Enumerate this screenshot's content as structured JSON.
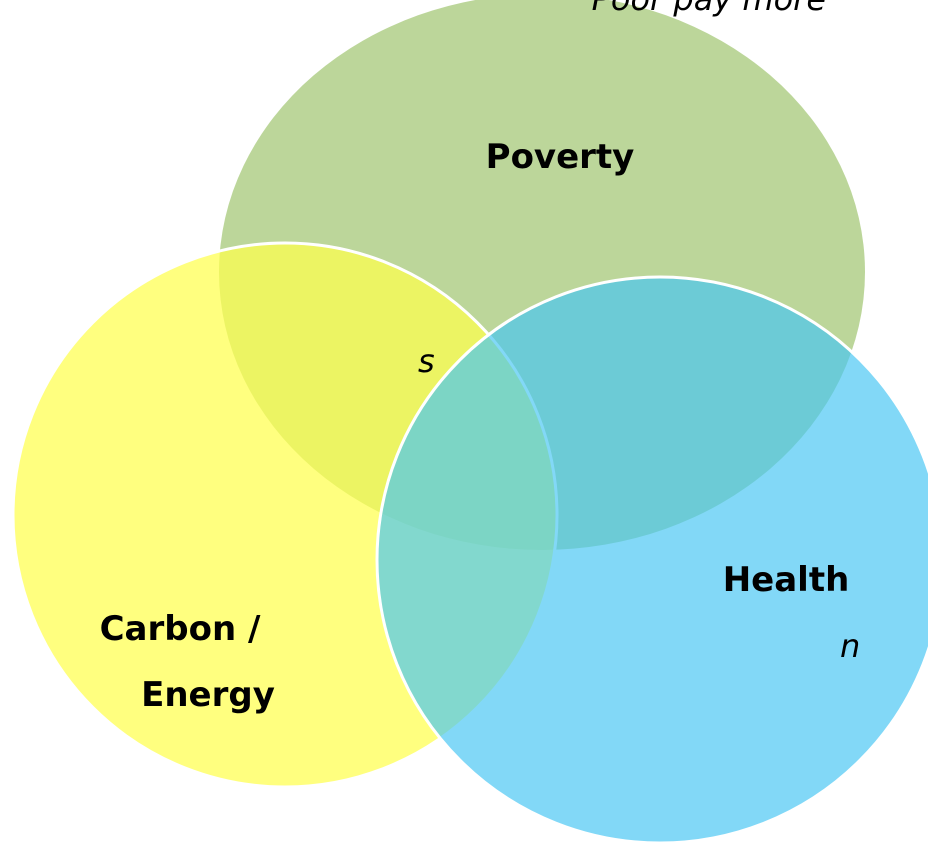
{
  "labels": {
    "note": "Poor pay more",
    "poverty": "Poverty",
    "health": "Health",
    "carbon_line1": "Carbon  /",
    "carbon_line2": "Energy",
    "fragment_left": "s",
    "fragment_right": "n"
  }
}
